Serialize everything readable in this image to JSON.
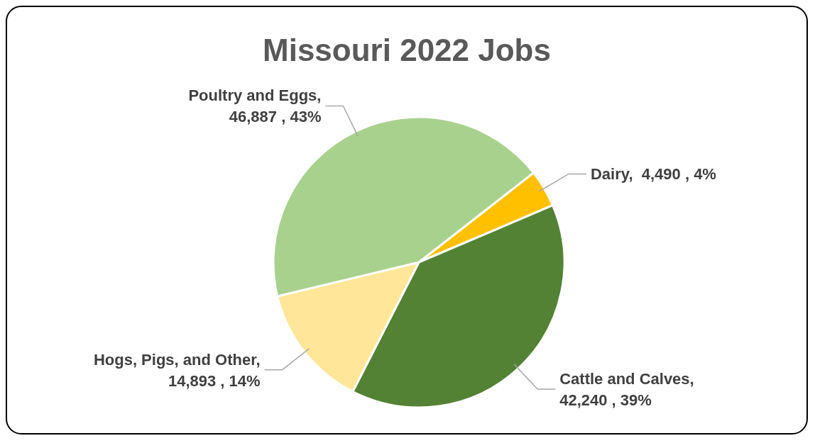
{
  "chart_data": {
    "type": "pie",
    "title": "Missouri 2022 Jobs",
    "categories": [
      "Dairy",
      "Cattle and Calves",
      "Hogs, Pigs, and Other",
      "Poultry and Eggs"
    ],
    "values": [
      4490,
      42240,
      14893,
      46887
    ],
    "value_labels": [
      ",  4,490 , 4%",
      ", 42,240 , 39%",
      ", 14,893 , 14%",
      ", 46,887 , 43%"
    ],
    "colors": [
      "#ffc000",
      "#548235",
      "#ffe699",
      "#a9d18e"
    ],
    "legend": false
  }
}
